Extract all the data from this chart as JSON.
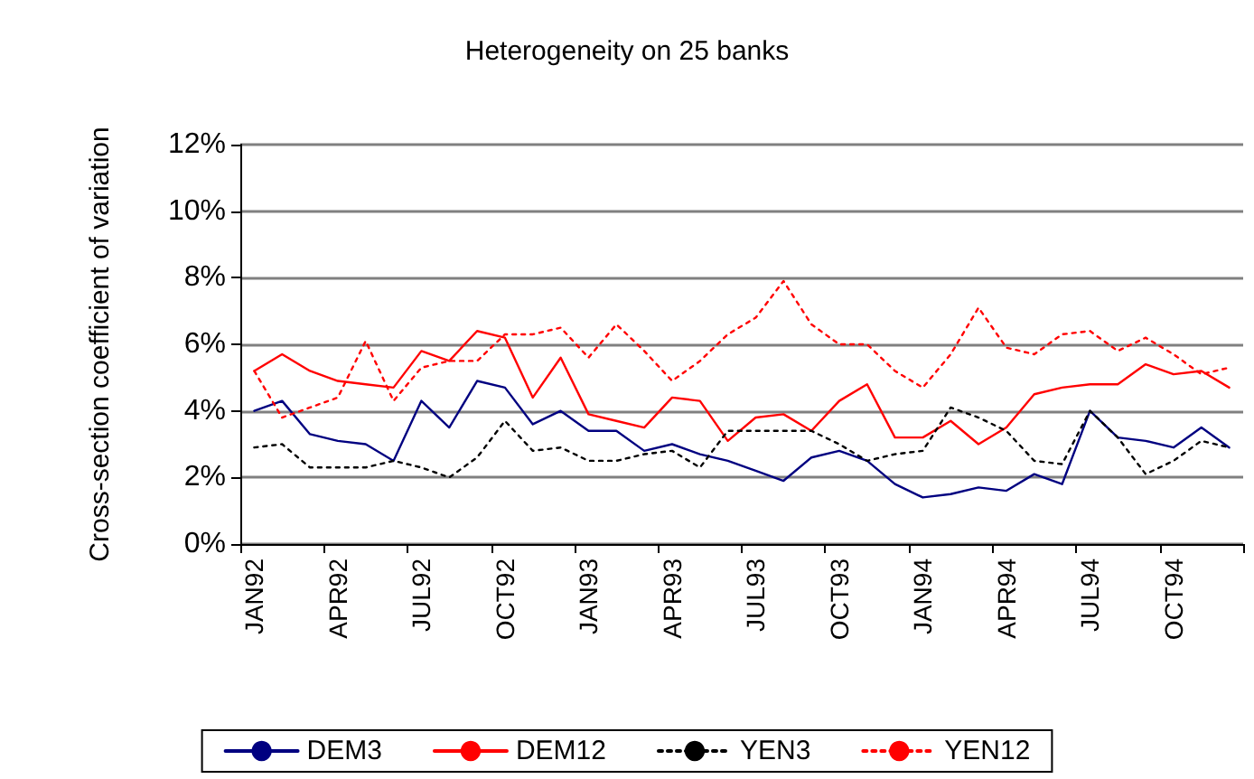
{
  "chart_data": {
    "type": "line",
    "title": "Heterogeneity on 25 banks",
    "ylabel": "Cross-section coefficient of variation",
    "categories": [
      "JAN92",
      null,
      null,
      "APR92",
      null,
      null,
      "JUL92",
      null,
      null,
      "OCT92",
      null,
      null,
      "JAN93",
      null,
      null,
      "APR93",
      null,
      null,
      "JUL93",
      null,
      null,
      "OCT93",
      null,
      null,
      "JAN94",
      null,
      null,
      "APR94",
      null,
      null,
      "JUL94",
      null,
      null,
      "OCT94",
      null,
      null
    ],
    "series": [
      {
        "name": "DEM3",
        "color": "#000080",
        "line_style": "solid",
        "values": [
          4.0,
          4.3,
          3.3,
          3.1,
          3.0,
          2.5,
          4.3,
          3.5,
          4.9,
          4.7,
          3.6,
          4.0,
          3.4,
          3.4,
          2.8,
          3.0,
          2.7,
          2.5,
          2.2,
          1.9,
          2.6,
          2.8,
          2.5,
          1.8,
          1.4,
          1.5,
          1.7,
          1.6,
          2.1,
          1.8,
          4.0,
          3.2,
          3.1,
          2.9,
          3.5,
          2.9
        ]
      },
      {
        "name": "DEM12",
        "color": "#ff0000",
        "line_style": "solid",
        "values": [
          5.2,
          5.7,
          5.2,
          4.9,
          4.8,
          4.7,
          5.8,
          5.5,
          6.4,
          6.2,
          4.4,
          5.6,
          3.9,
          3.7,
          3.5,
          4.4,
          4.3,
          3.1,
          3.8,
          3.9,
          3.4,
          4.3,
          4.8,
          3.2,
          3.2,
          3.7,
          3.0,
          3.5,
          4.5,
          4.7,
          4.8,
          4.8,
          5.4,
          5.1,
          5.2,
          4.7
        ]
      },
      {
        "name": "YEN3",
        "color": "#000000",
        "line_style": "dotted",
        "values": [
          2.9,
          3.0,
          2.3,
          2.3,
          2.3,
          2.5,
          2.3,
          2.0,
          2.6,
          3.7,
          2.8,
          2.9,
          2.5,
          2.5,
          2.7,
          2.8,
          2.3,
          3.4,
          3.4,
          3.4,
          3.4,
          3.0,
          2.5,
          2.7,
          2.8,
          4.1,
          3.8,
          3.4,
          2.5,
          2.4,
          4.0,
          3.2,
          2.1,
          2.5,
          3.1,
          2.9
        ]
      },
      {
        "name": "YEN12",
        "color": "#ff0000",
        "line_style": "dotted",
        "values": [
          5.2,
          3.8,
          4.1,
          4.4,
          6.1,
          4.3,
          5.3,
          5.5,
          5.5,
          6.3,
          6.3,
          6.5,
          5.6,
          6.6,
          5.8,
          4.9,
          5.5,
          6.3,
          6.8,
          7.9,
          6.6,
          6.0,
          6.0,
          5.2,
          4.7,
          5.7,
          7.1,
          5.9,
          5.7,
          6.3,
          6.4,
          5.8,
          6.2,
          5.7,
          5.1,
          5.3
        ]
      }
    ],
    "ylim": [
      0,
      12
    ],
    "yticks": [
      {
        "value": 0,
        "label": "0%"
      },
      {
        "value": 2,
        "label": "2%"
      },
      {
        "value": 4,
        "label": "4%"
      },
      {
        "value": 6,
        "label": "6%"
      },
      {
        "value": 8,
        "label": "8%"
      },
      {
        "value": 10,
        "label": "10%"
      },
      {
        "value": 12,
        "label": "12%"
      }
    ],
    "grid": "y",
    "legend": "bottom",
    "marker": "none"
  }
}
